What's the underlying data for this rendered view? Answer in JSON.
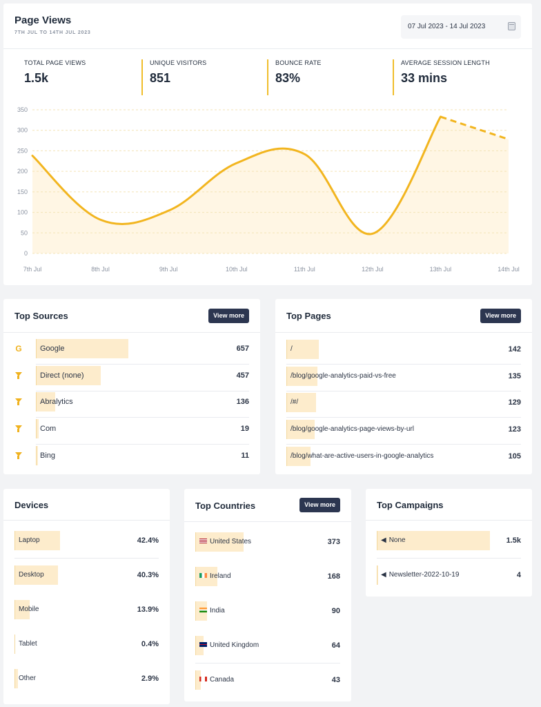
{
  "page_views": {
    "title": "Page Views",
    "subtitle": "7TH JUL TO 14TH JUL 2023",
    "date_range": "07 Jul 2023 - 14 Jul 2023",
    "stats": [
      {
        "label": "TOTAL PAGE VIEWS",
        "value": "1.5k"
      },
      {
        "label": "UNIQUE VISITORS",
        "value": "851"
      },
      {
        "label": "BOUNCE RATE",
        "value": "83%"
      },
      {
        "label": "AVERAGE SESSION LENGTH",
        "value": "33 mins"
      }
    ]
  },
  "chart_data": {
    "type": "line",
    "categories": [
      "7th Jul",
      "8th Jul",
      "9th Jul",
      "10th Jul",
      "11th Jul",
      "12th Jul",
      "13th Jul",
      "14th Jul"
    ],
    "series": [
      {
        "values": [
          238,
          82,
          104,
          220,
          242,
          48,
          333,
          278
        ]
      }
    ],
    "ylim": [
      0,
      350
    ],
    "yticks": [
      0,
      50,
      100,
      150,
      200,
      250,
      300,
      350
    ],
    "grid": true,
    "line_color": "#f2b51f",
    "fill_color": "#fff6e4",
    "last_segment_dashed": true
  },
  "top_sources": {
    "title": "Top Sources",
    "view_more": "View more",
    "items": [
      {
        "icon": "google-icon",
        "label": "Google",
        "value": "657",
        "share": 1.0
      },
      {
        "icon": "funnel-icon",
        "label": "Direct (none)",
        "value": "457",
        "share": 0.7
      },
      {
        "icon": "funnel-icon",
        "label": "Abralytics",
        "value": "136",
        "share": 0.21
      },
      {
        "icon": "funnel-icon",
        "label": "Com",
        "value": "19",
        "share": 0.03
      },
      {
        "icon": "funnel-icon",
        "label": "Bing",
        "value": "11",
        "share": 0.02
      }
    ]
  },
  "top_pages": {
    "title": "Top Pages",
    "view_more": "View more",
    "items": [
      {
        "label": "/",
        "value": "142",
        "share": 1.0
      },
      {
        "label": "/blog/google-analytics-paid-vs-free",
        "value": "135",
        "share": 0.95
      },
      {
        "label": "/#/",
        "value": "129",
        "share": 0.91
      },
      {
        "label": "/blog/google-analytics-page-views-by-url",
        "value": "123",
        "share": 0.87
      },
      {
        "label": "/blog/what-are-active-users-in-google-analytics",
        "value": "105",
        "share": 0.74
      }
    ]
  },
  "devices": {
    "title": "Devices",
    "items": [
      {
        "label": "Laptop",
        "value": "42.4%",
        "share": 1.0
      },
      {
        "label": "Desktop",
        "value": "40.3%",
        "share": 0.95
      },
      {
        "label": "Mobile",
        "value": "13.9%",
        "share": 0.33
      },
      {
        "label": "Tablet",
        "value": "0.4%",
        "share": 0.01
      },
      {
        "label": "Other",
        "value": "2.9%",
        "share": 0.07
      }
    ]
  },
  "top_countries": {
    "title": "Top Countries",
    "view_more": "View more",
    "items": [
      {
        "flag": "us-flag-icon",
        "label": "United States",
        "value": "373",
        "share": 1.0
      },
      {
        "flag": "ireland-flag-icon",
        "label": "Ireland",
        "value": "168",
        "share": 0.45
      },
      {
        "flag": "india-flag-icon",
        "label": "India",
        "value": "90",
        "share": 0.24
      },
      {
        "flag": "uk-flag-icon",
        "label": "United Kingdom",
        "value": "64",
        "share": 0.17
      },
      {
        "flag": "canada-flag-icon",
        "label": "Canada",
        "value": "43",
        "share": 0.12
      }
    ]
  },
  "top_campaigns": {
    "title": "Top Campaigns",
    "items": [
      {
        "icon": "megaphone-icon",
        "label": "None",
        "value": "1.5k",
        "share": 1.0
      },
      {
        "icon": "megaphone-icon",
        "label": "Newsletter-2022-10-19",
        "value": "4",
        "share": 0.01
      }
    ]
  }
}
